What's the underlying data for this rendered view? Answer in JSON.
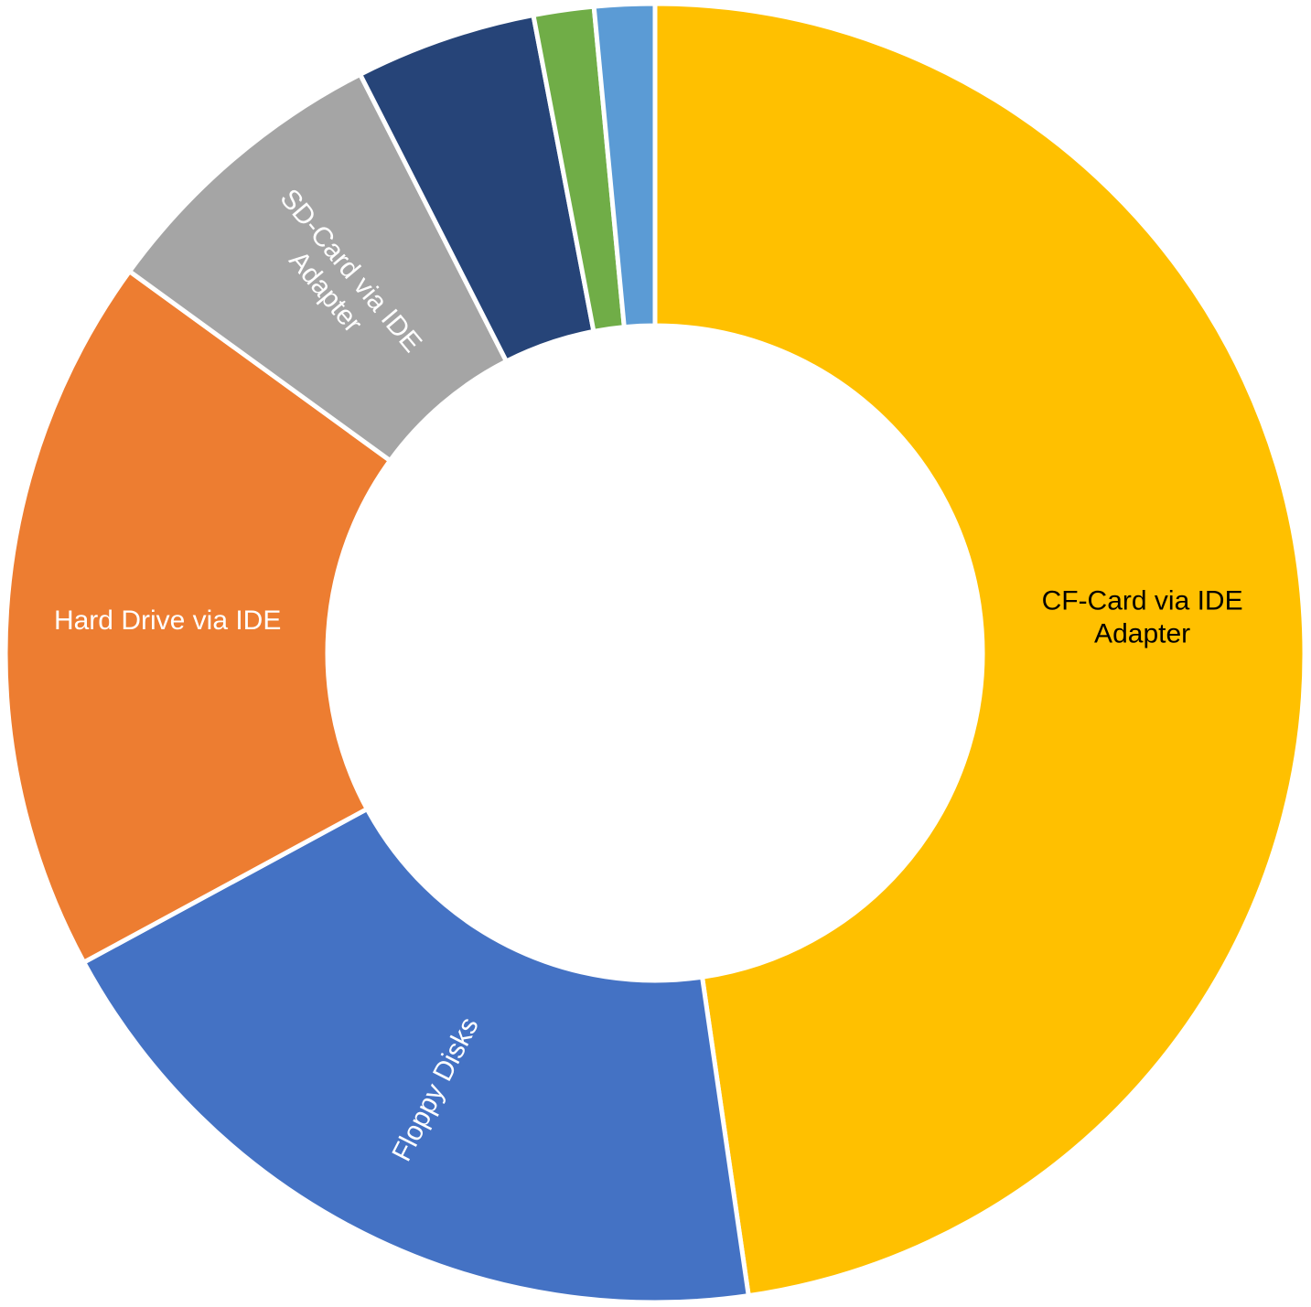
{
  "chart_data": {
    "type": "donut",
    "categories": [
      "CF-Card via IDE Adapter",
      "Floppy Disks",
      "Hard Drive via IDE",
      "SD-Card via IDE Adapter",
      null,
      null,
      null
    ],
    "values": [
      47.7,
      19.4,
      17.9,
      7.5,
      4.5,
      1.5,
      1.5
    ],
    "colors": [
      "#ffc000",
      "#4472c4",
      "#ed7d31",
      "#a5a5a5",
      "#264478",
      "#70ad47",
      "#5b9bd5"
    ]
  }
}
